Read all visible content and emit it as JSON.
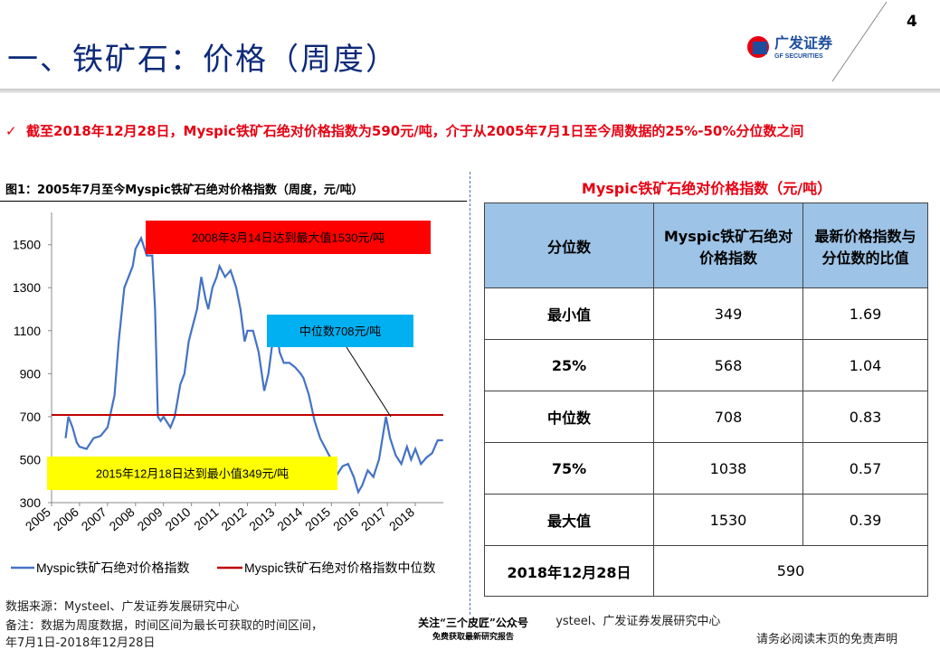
{
  "header": {
    "title": "一、铁矿石：价格（周度）",
    "page_number": "4",
    "logo_cn": "广发证券",
    "logo_en": "GF SECURITIES"
  },
  "bullet": "截至2018年12月28日，Myspic铁矿石绝对价格指数为590元/吨，介于从2005年7月1日至今周数据的25%-50%分位数之间",
  "chart_data": {
    "type": "line",
    "title": "图1：2005年7月至今Myspic铁矿石绝对价格指数（周度，元/吨）",
    "x": [
      2005.5,
      2005.6,
      2005.75,
      2005.9,
      2006.0,
      2006.25,
      2006.5,
      2006.75,
      2007.0,
      2007.25,
      2007.4,
      2007.6,
      2007.75,
      2007.9,
      2008.0,
      2008.2,
      2008.4,
      2008.6,
      2008.7,
      2008.8,
      2008.9,
      2009.0,
      2009.25,
      2009.4,
      2009.6,
      2009.75,
      2009.9,
      2010.0,
      2010.2,
      2010.35,
      2010.5,
      2010.6,
      2010.75,
      2010.9,
      2011.0,
      2011.2,
      2011.4,
      2011.6,
      2011.75,
      2011.9,
      2012.0,
      2012.2,
      2012.4,
      2012.6,
      2012.75,
      2012.9,
      2013.0,
      2013.15,
      2013.3,
      2013.5,
      2013.7,
      2013.9,
      2014.0,
      2014.2,
      2014.4,
      2014.6,
      2014.8,
      2015.0,
      2015.2,
      2015.4,
      2015.6,
      2015.8,
      2015.96,
      2016.1,
      2016.3,
      2016.5,
      2016.7,
      2016.85,
      2016.95,
      2017.1,
      2017.3,
      2017.5,
      2017.7,
      2017.85,
      2018.0,
      2018.2,
      2018.4,
      2018.6,
      2018.8,
      2018.99
    ],
    "series": [
      {
        "name": "Myspic铁矿石绝对价格指数",
        "color": "#4472c4",
        "values": [
          600,
          700,
          650,
          580,
          560,
          550,
          600,
          610,
          650,
          800,
          1050,
          1300,
          1350,
          1400,
          1480,
          1530,
          1450,
          1450,
          1200,
          700,
          680,
          700,
          650,
          700,
          850,
          900,
          1050,
          1100,
          1200,
          1350,
          1250,
          1200,
          1300,
          1350,
          1400,
          1350,
          1380,
          1300,
          1200,
          1050,
          1100,
          1100,
          1000,
          820,
          900,
          1050,
          1150,
          1000,
          950,
          950,
          930,
          900,
          880,
          800,
          680,
          600,
          550,
          500,
          430,
          470,
          480,
          420,
          349,
          380,
          450,
          420,
          500,
          620,
          700,
          600,
          520,
          480,
          560,
          500,
          550,
          480,
          510,
          530,
          590,
          590
        ]
      }
    ],
    "reference": {
      "name": "Myspic铁矿石绝对价格指数中位数",
      "color": "#c00000",
      "value": 708
    },
    "xlim": [
      2005,
      2019
    ],
    "xticks": [
      2005,
      2006,
      2007,
      2008,
      2009,
      2010,
      2011,
      2012,
      2013,
      2014,
      2015,
      2016,
      2017,
      2018
    ],
    "ylim": [
      300,
      1650
    ],
    "yticks": [
      300,
      500,
      700,
      900,
      1100,
      1300,
      1500
    ],
    "annotations": [
      {
        "text": "2008年3月14日达到最大值1530元/吨",
        "color": "#ff0000"
      },
      {
        "text": "中位数708元/吨",
        "color": "#00b0f0"
      },
      {
        "text": "2015年12月18日达到最小值349元/吨",
        "color": "#ffff00"
      }
    ]
  },
  "table": {
    "title": "Myspic铁矿石绝对价格指数（元/吨）",
    "header": [
      "分位数",
      "Myspic铁矿石绝对价格指数",
      "最新价格指数与分位数的比值"
    ],
    "rows": [
      [
        "最小值",
        349,
        1.69
      ],
      [
        "25%",
        568,
        1.04
      ],
      [
        "中位数",
        708,
        0.83
      ],
      [
        "75%",
        1038,
        0.57
      ],
      [
        "最大值",
        1530,
        0.39
      ]
    ],
    "latest": [
      "2018年12月28日",
      590
    ]
  },
  "footer": {
    "source_left": "数据来源：Mysteel、广发证券发展研究中心",
    "note": "备注：数据为周度数据，时间区间为最长可获取的时间区间，",
    "note2": "年7月1日-2018年12月28日",
    "source_right": "数据来源：Mysteel、广发证券发展研究中心",
    "disclaimer": "请务必阅读末页的免责声明",
    "watermark": "关注“三个皮匠”公众号",
    "watermark2": "免费获取最新研究报告"
  }
}
